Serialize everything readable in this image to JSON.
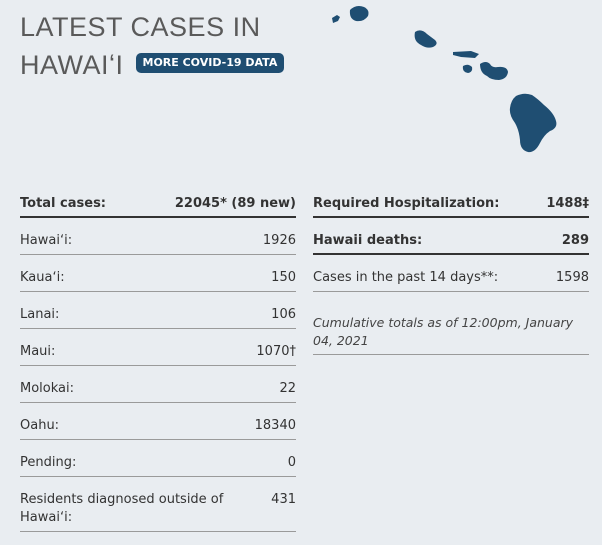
{
  "header": {
    "title": "LATEST CASES IN HAWAIʻI",
    "button": "MORE COVID-19 DATA"
  },
  "left_table": {
    "rows": [
      [
        "Total cases:",
        "22045* (89 new)"
      ],
      [
        "Hawaiʻi:",
        1926
      ],
      [
        "Kauaʻi:",
        150
      ],
      [
        "Lanai:",
        106
      ],
      [
        "Maui:",
        "1070†"
      ],
      [
        "Molokai:",
        22
      ],
      [
        "Oahu:",
        18340
      ],
      [
        "Pending:",
        0
      ],
      [
        "Residents diagnosed outside of Hawaiʻi:",
        431
      ]
    ]
  },
  "right_table": {
    "rows": [
      [
        "Required Hospitalization:",
        "1488‡"
      ],
      [
        "Hawaii deaths:",
        289
      ],
      [
        "Cases in the past 14 days**:",
        1598
      ]
    ],
    "note": "Cumulative totals as of 12:00pm, January 04, 2021"
  }
}
